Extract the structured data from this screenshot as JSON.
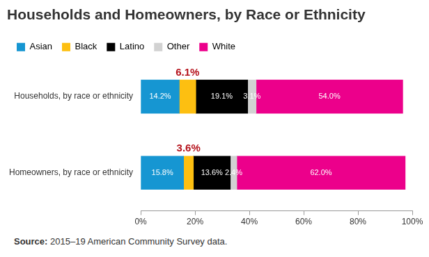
{
  "chart_data": {
    "type": "bar",
    "orientation": "horizontal",
    "stacked": true,
    "title": "Households and Homeowners, by Race or Ethnicity",
    "source_label": "Source:",
    "source": "2015–19 American Community Survey data.",
    "categories": [
      "Households, by race or ethnicity",
      "Homeowners, by race or ethnicity"
    ],
    "series": [
      {
        "name": "Asian",
        "color": "#1696d2",
        "values": [
          14.2,
          15.8
        ],
        "value_labels": [
          "14.2%",
          "15.8%"
        ]
      },
      {
        "name": "Black",
        "color": "#fdbf11",
        "values": [
          6.1,
          3.6
        ],
        "value_labels": [
          "6.1%",
          "3.6%"
        ]
      },
      {
        "name": "Latino",
        "color": "#000000",
        "values": [
          19.1,
          13.6
        ],
        "value_labels": [
          "19.1%",
          "13.6%"
        ]
      },
      {
        "name": "Other",
        "color": "#d2d2d2",
        "values": [
          3.1,
          2.4
        ],
        "value_labels": [
          "3.1%",
          "2.4%"
        ]
      },
      {
        "name": "White",
        "color": "#ec008b",
        "values": [
          54.0,
          62.0
        ],
        "value_labels": [
          "54.0%",
          "62.0%"
        ]
      }
    ],
    "xlim": [
      0,
      100
    ],
    "xticks": [
      {
        "value": 0,
        "label": "0%"
      },
      {
        "value": 20,
        "label": "20%"
      },
      {
        "value": 40,
        "label": "40%"
      },
      {
        "value": 60,
        "label": "60%"
      },
      {
        "value": 80,
        "label": "80%"
      },
      {
        "value": 100,
        "label": "100%"
      }
    ],
    "grid": false,
    "legend": "top-left",
    "data_labels": true
  }
}
